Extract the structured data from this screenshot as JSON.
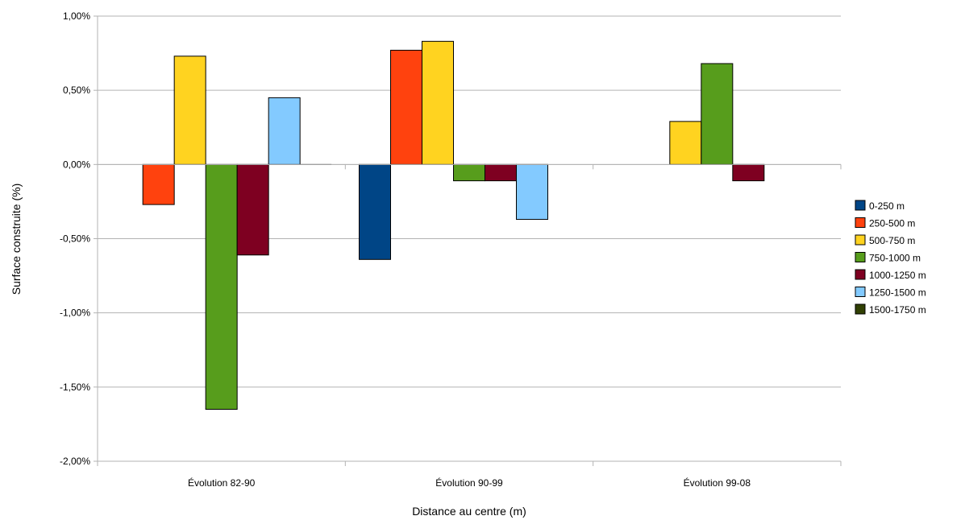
{
  "chart_data": {
    "type": "bar",
    "title": "",
    "xlabel": "Distance au centre (m)",
    "ylabel": "Surface construite (%)",
    "ylim": [
      -2.0,
      1.0
    ],
    "ytick_values": [
      1.0,
      0.5,
      0.0,
      -0.5,
      -1.0,
      -1.5,
      -2.0
    ],
    "ytick_labels": [
      "1,00%",
      "0,50%",
      "0,00%",
      "-0,50%",
      "-1,00%",
      "-1,50%",
      "-2,00%"
    ],
    "grid": true,
    "legend_position": "right",
    "categories": [
      "Évolution 82-90",
      "Évolution 90-99",
      "Évolution 99-08"
    ],
    "series": [
      {
        "name": "0-250 m",
        "color": "#004586",
        "values": [
          0.0,
          -0.64,
          0.0
        ]
      },
      {
        "name": "250-500 m",
        "color": "#ff420e",
        "values": [
          -0.27,
          0.77,
          0.0
        ]
      },
      {
        "name": "500-750 m",
        "color": "#ffd320",
        "values": [
          0.73,
          0.83,
          0.29
        ]
      },
      {
        "name": "750-1000 m",
        "color": "#579d1c",
        "values": [
          -1.65,
          -0.11,
          0.68
        ]
      },
      {
        "name": "1000-1250 m",
        "color": "#7e0021",
        "values": [
          -0.61,
          -0.11,
          -0.11
        ]
      },
      {
        "name": "1250-1500 m",
        "color": "#83caff",
        "values": [
          0.45,
          -0.37,
          0.0
        ]
      },
      {
        "name": "1500-1750 m",
        "color": "#314004",
        "values": [
          0.0,
          0.0,
          0.0
        ]
      }
    ]
  }
}
